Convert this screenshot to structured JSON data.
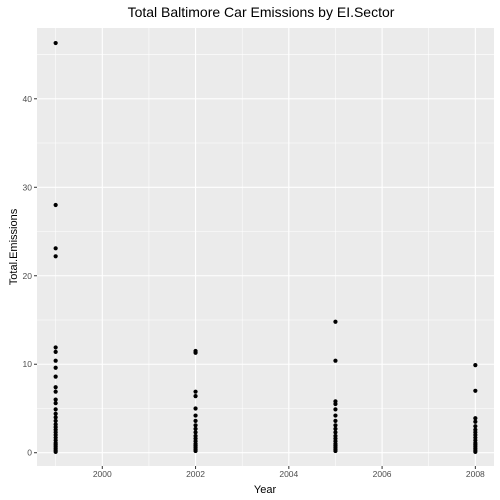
{
  "chart_data": {
    "type": "scatter",
    "title": "Total Baltimore Car Emissions by EI.Sector",
    "xlabel": "Year",
    "ylabel": "Total.Emissions",
    "xlim": [
      1998.6,
      2008.4
    ],
    "ylim": [
      -1.5,
      48
    ],
    "x_ticks": [
      2000,
      2002,
      2004,
      2006,
      2008
    ],
    "y_ticks": [
      0,
      10,
      20,
      30,
      40
    ],
    "grid": true,
    "colors": {
      "panel": "#ebebeb",
      "grid_major": "#ffffff",
      "point": "#000000"
    },
    "points": [
      {
        "x": 1999,
        "y": 46.3
      },
      {
        "x": 1999,
        "y": 28.0
      },
      {
        "x": 1999,
        "y": 23.1
      },
      {
        "x": 1999,
        "y": 22.2
      },
      {
        "x": 1999,
        "y": 11.9
      },
      {
        "x": 1999,
        "y": 11.4
      },
      {
        "x": 1999,
        "y": 10.4
      },
      {
        "x": 1999,
        "y": 9.6
      },
      {
        "x": 1999,
        "y": 8.6
      },
      {
        "x": 1999,
        "y": 7.4
      },
      {
        "x": 1999,
        "y": 6.9
      },
      {
        "x": 1999,
        "y": 6.0
      },
      {
        "x": 1999,
        "y": 5.6
      },
      {
        "x": 1999,
        "y": 4.9
      },
      {
        "x": 1999,
        "y": 4.4
      },
      {
        "x": 1999,
        "y": 4.0
      },
      {
        "x": 1999,
        "y": 3.6
      },
      {
        "x": 1999,
        "y": 3.2
      },
      {
        "x": 1999,
        "y": 2.9
      },
      {
        "x": 1999,
        "y": 2.6
      },
      {
        "x": 1999,
        "y": 2.3
      },
      {
        "x": 1999,
        "y": 2.0
      },
      {
        "x": 1999,
        "y": 1.7
      },
      {
        "x": 1999,
        "y": 1.4
      },
      {
        "x": 1999,
        "y": 1.1
      },
      {
        "x": 1999,
        "y": 0.9
      },
      {
        "x": 1999,
        "y": 0.7
      },
      {
        "x": 1999,
        "y": 0.5
      },
      {
        "x": 1999,
        "y": 0.3
      },
      {
        "x": 1999,
        "y": 0.1
      },
      {
        "x": 2002,
        "y": 11.5
      },
      {
        "x": 2002,
        "y": 11.3
      },
      {
        "x": 2002,
        "y": 6.9
      },
      {
        "x": 2002,
        "y": 6.4
      },
      {
        "x": 2002,
        "y": 5.0
      },
      {
        "x": 2002,
        "y": 4.2
      },
      {
        "x": 2002,
        "y": 3.6
      },
      {
        "x": 2002,
        "y": 3.1
      },
      {
        "x": 2002,
        "y": 2.7
      },
      {
        "x": 2002,
        "y": 2.3
      },
      {
        "x": 2002,
        "y": 1.9
      },
      {
        "x": 2002,
        "y": 1.6
      },
      {
        "x": 2002,
        "y": 1.3
      },
      {
        "x": 2002,
        "y": 1.0
      },
      {
        "x": 2002,
        "y": 0.8
      },
      {
        "x": 2002,
        "y": 0.6
      },
      {
        "x": 2002,
        "y": 0.4
      },
      {
        "x": 2002,
        "y": 0.2
      },
      {
        "x": 2005,
        "y": 14.8
      },
      {
        "x": 2005,
        "y": 10.4
      },
      {
        "x": 2005,
        "y": 5.8
      },
      {
        "x": 2005,
        "y": 5.5
      },
      {
        "x": 2005,
        "y": 4.9
      },
      {
        "x": 2005,
        "y": 4.2
      },
      {
        "x": 2005,
        "y": 3.6
      },
      {
        "x": 2005,
        "y": 3.1
      },
      {
        "x": 2005,
        "y": 2.7
      },
      {
        "x": 2005,
        "y": 2.3
      },
      {
        "x": 2005,
        "y": 1.9
      },
      {
        "x": 2005,
        "y": 1.6
      },
      {
        "x": 2005,
        "y": 1.3
      },
      {
        "x": 2005,
        "y": 1.0
      },
      {
        "x": 2005,
        "y": 0.8
      },
      {
        "x": 2005,
        "y": 0.6
      },
      {
        "x": 2005,
        "y": 0.4
      },
      {
        "x": 2005,
        "y": 0.2
      },
      {
        "x": 2008,
        "y": 9.9
      },
      {
        "x": 2008,
        "y": 7.0
      },
      {
        "x": 2008,
        "y": 3.9
      },
      {
        "x": 2008,
        "y": 3.5
      },
      {
        "x": 2008,
        "y": 3.0
      },
      {
        "x": 2008,
        "y": 2.6
      },
      {
        "x": 2008,
        "y": 2.3
      },
      {
        "x": 2008,
        "y": 2.0
      },
      {
        "x": 2008,
        "y": 1.7
      },
      {
        "x": 2008,
        "y": 1.4
      },
      {
        "x": 2008,
        "y": 1.1
      },
      {
        "x": 2008,
        "y": 0.9
      },
      {
        "x": 2008,
        "y": 0.7
      },
      {
        "x": 2008,
        "y": 0.5
      },
      {
        "x": 2008,
        "y": 0.3
      },
      {
        "x": 2008,
        "y": 0.1
      }
    ]
  }
}
